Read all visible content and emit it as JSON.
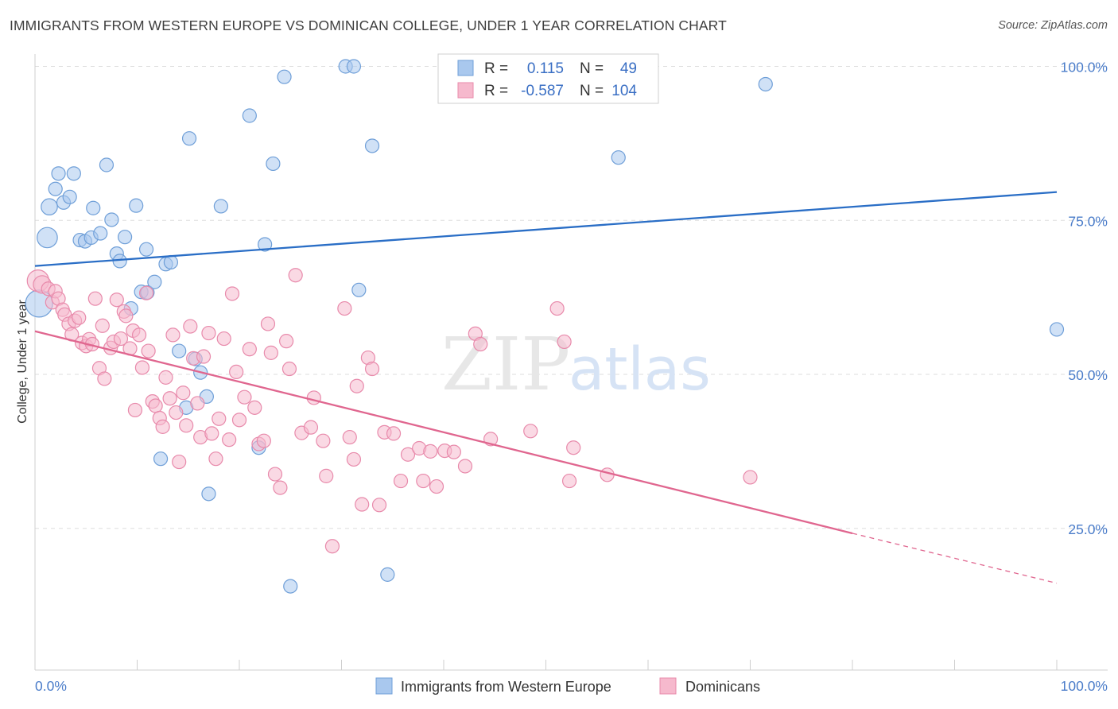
{
  "title": "IMMIGRANTS FROM WESTERN EUROPE VS DOMINICAN COLLEGE, UNDER 1 YEAR CORRELATION CHART",
  "source": "Source: ZipAtlas.com",
  "watermark": {
    "zip": "ZIP",
    "atlas": "atlas"
  },
  "colors": {
    "blue_fill": "#a9c8ee",
    "blue_stroke": "#6f9fd8",
    "blue_line": "#2a6ec6",
    "pink_fill": "#f6b9cd",
    "pink_stroke": "#e88aab",
    "pink_line": "#e0668f",
    "tick_text": "#4a7cc9",
    "grid": "#dedede"
  },
  "chart_data": {
    "type": "scatter",
    "title": "IMMIGRANTS FROM WESTERN EUROPE VS DOMINICAN COLLEGE, UNDER 1 YEAR CORRELATION CHART",
    "xlabel": "",
    "ylabel": "College, Under 1 year",
    "xlim": [
      0,
      100
    ],
    "ylim": [
      2,
      102
    ],
    "y_ticks": [
      {
        "value": 25,
        "label": "25.0%"
      },
      {
        "value": 50,
        "label": "50.0%"
      },
      {
        "value": 75,
        "label": "75.0%"
      },
      {
        "value": 100,
        "label": "100.0%"
      }
    ],
    "x_tick_labels": {
      "left": "0.0%",
      "right": "100.0%"
    },
    "x_minor_ticks": [
      0,
      10,
      20,
      30,
      40,
      50,
      60,
      70,
      80,
      90,
      100
    ],
    "grid": true,
    "legend_position": "top-center",
    "stats": [
      {
        "r_label": "R =",
        "r_value": "0.115",
        "n_label": "N =",
        "n_value": "49"
      },
      {
        "r_label": "R =",
        "r_value": "-0.587",
        "n_label": "N =",
        "n_value": "104"
      }
    ],
    "series": [
      {
        "name": "Immigrants from Western Europe",
        "color": "blue",
        "trend": {
          "x0": 0,
          "y0": 67.6,
          "x1": 100,
          "y1": 79.6
        },
        "points": [
          [
            0.4,
            61.5,
            2
          ],
          [
            1.2,
            72.2,
            1.5
          ],
          [
            1.4,
            77.2,
            1.2
          ],
          [
            2.0,
            80.1,
            1.0
          ],
          [
            2.3,
            82.6,
            1.0
          ],
          [
            2.8,
            77.9,
            1.0
          ],
          [
            3.4,
            78.8,
            1.0
          ],
          [
            3.8,
            82.6,
            1.0
          ],
          [
            4.4,
            71.8,
            1.0
          ],
          [
            4.9,
            71.6,
            1.0
          ],
          [
            5.7,
            77.0,
            1.0
          ],
          [
            5.5,
            72.2,
            1.0
          ],
          [
            6.4,
            72.9,
            1.0
          ],
          [
            7.0,
            84.0,
            1.0
          ],
          [
            7.5,
            75.1,
            1.0
          ],
          [
            8.0,
            69.6,
            1.0
          ],
          [
            8.3,
            68.4,
            1.0
          ],
          [
            8.8,
            72.3,
            1.0
          ],
          [
            9.4,
            60.7,
            1.0
          ],
          [
            9.9,
            77.4,
            1.0
          ],
          [
            10.4,
            63.4,
            1.0
          ],
          [
            10.9,
            70.3,
            1.0
          ],
          [
            11.0,
            63.3,
            1.0
          ],
          [
            11.7,
            65.0,
            1.0
          ],
          [
            12.3,
            36.3,
            1.0
          ],
          [
            12.8,
            67.9,
            1.0
          ],
          [
            13.3,
            68.2,
            1.0
          ],
          [
            14.1,
            53.8,
            1.0
          ],
          [
            14.8,
            44.6,
            1.0
          ],
          [
            15.1,
            88.3,
            1.0
          ],
          [
            15.7,
            52.5,
            1.0
          ],
          [
            16.2,
            50.3,
            1.0
          ],
          [
            16.8,
            46.4,
            1.0
          ],
          [
            17.0,
            30.6,
            1.0
          ],
          [
            18.2,
            77.3,
            1.0
          ],
          [
            21.0,
            92.0,
            1.0
          ],
          [
            21.9,
            38.1,
            1.0
          ],
          [
            22.5,
            71.1,
            1.0
          ],
          [
            23.3,
            84.2,
            1.0
          ],
          [
            24.4,
            98.3,
            1.0
          ],
          [
            25.0,
            15.6,
            1.0
          ],
          [
            30.4,
            100.0,
            1.0
          ],
          [
            31.2,
            100.0,
            1.0
          ],
          [
            31.7,
            63.7,
            1.0
          ],
          [
            33.0,
            87.1,
            1.0
          ],
          [
            34.5,
            17.5,
            1.0
          ],
          [
            57.1,
            85.2,
            1.0
          ],
          [
            71.5,
            97.1,
            1.0
          ],
          [
            100.0,
            57.3,
            1.0
          ]
        ]
      },
      {
        "name": "Dominicans",
        "color": "pink",
        "trend": {
          "x0": 0,
          "y0": 57.0,
          "x1": 80,
          "y1": 24.2,
          "dash_to_x": 100,
          "dash_to_y": 16.1
        },
        "points": [
          [
            0.3,
            65.2,
            1.6
          ],
          [
            0.7,
            64.6,
            1.3
          ],
          [
            1.3,
            63.9,
            1.0
          ],
          [
            1.7,
            61.7,
            1.0
          ],
          [
            2.0,
            63.5,
            1.0
          ],
          [
            2.3,
            62.3,
            1.0
          ],
          [
            2.7,
            60.5,
            1.0
          ],
          [
            2.9,
            59.7,
            1.0
          ],
          [
            3.3,
            58.2,
            1.0
          ],
          [
            3.6,
            56.5,
            1.0
          ],
          [
            3.9,
            58.7,
            1.0
          ],
          [
            4.3,
            59.2,
            1.0
          ],
          [
            4.6,
            55.1,
            1.0
          ],
          [
            5.0,
            54.6,
            1.0
          ],
          [
            5.3,
            55.7,
            1.0
          ],
          [
            5.6,
            54.9,
            1.0
          ],
          [
            5.9,
            62.3,
            1.0
          ],
          [
            6.3,
            51.0,
            1.0
          ],
          [
            6.6,
            57.9,
            1.0
          ],
          [
            6.8,
            49.3,
            1.0
          ],
          [
            7.4,
            54.3,
            1.0
          ],
          [
            7.7,
            55.3,
            1.0
          ],
          [
            8.0,
            62.1,
            1.0
          ],
          [
            8.4,
            55.8,
            1.0
          ],
          [
            8.7,
            60.2,
            1.0
          ],
          [
            8.9,
            59.5,
            1.0
          ],
          [
            9.3,
            54.2,
            1.0
          ],
          [
            9.6,
            57.1,
            1.0
          ],
          [
            9.8,
            44.2,
            1.0
          ],
          [
            10.2,
            56.4,
            1.0
          ],
          [
            10.5,
            51.1,
            1.0
          ],
          [
            10.9,
            63.2,
            1.0
          ],
          [
            11.1,
            53.8,
            1.0
          ],
          [
            11.5,
            45.6,
            1.0
          ],
          [
            11.8,
            44.9,
            1.0
          ],
          [
            12.2,
            42.9,
            1.0
          ],
          [
            12.5,
            41.5,
            1.0
          ],
          [
            12.8,
            49.5,
            1.0
          ],
          [
            13.2,
            46.1,
            1.0
          ],
          [
            13.5,
            56.4,
            1.0
          ],
          [
            13.8,
            43.8,
            1.0
          ],
          [
            14.1,
            35.8,
            1.0
          ],
          [
            14.5,
            47.0,
            1.0
          ],
          [
            14.8,
            41.7,
            1.0
          ],
          [
            15.2,
            57.8,
            1.0
          ],
          [
            15.5,
            52.6,
            1.0
          ],
          [
            15.9,
            45.3,
            1.0
          ],
          [
            16.2,
            39.8,
            1.0
          ],
          [
            16.5,
            52.9,
            1.0
          ],
          [
            17.0,
            56.7,
            1.0
          ],
          [
            17.3,
            40.4,
            1.0
          ],
          [
            17.7,
            36.3,
            1.0
          ],
          [
            18.0,
            42.8,
            1.0
          ],
          [
            18.5,
            55.8,
            1.0
          ],
          [
            19.0,
            39.4,
            1.0
          ],
          [
            19.3,
            63.1,
            1.0
          ],
          [
            19.7,
            50.4,
            1.0
          ],
          [
            20.0,
            42.6,
            1.0
          ],
          [
            20.5,
            46.3,
            1.0
          ],
          [
            21.0,
            54.1,
            1.0
          ],
          [
            21.5,
            44.6,
            1.0
          ],
          [
            21.9,
            38.7,
            1.0
          ],
          [
            22.4,
            39.2,
            1.0
          ],
          [
            22.8,
            58.2,
            1.0
          ],
          [
            23.1,
            53.5,
            1.0
          ],
          [
            23.5,
            33.8,
            1.0
          ],
          [
            24.0,
            31.6,
            1.0
          ],
          [
            24.6,
            55.4,
            1.0
          ],
          [
            24.9,
            50.9,
            1.0
          ],
          [
            25.5,
            66.1,
            1.0
          ],
          [
            26.1,
            40.5,
            1.0
          ],
          [
            27.0,
            41.4,
            1.0
          ],
          [
            27.3,
            46.2,
            1.0
          ],
          [
            28.2,
            39.2,
            1.0
          ],
          [
            28.5,
            33.5,
            1.0
          ],
          [
            29.1,
            22.1,
            1.0
          ],
          [
            30.3,
            60.7,
            1.0
          ],
          [
            30.8,
            39.8,
            1.0
          ],
          [
            31.2,
            36.2,
            1.0
          ],
          [
            31.5,
            48.1,
            1.0
          ],
          [
            32.0,
            28.9,
            1.0
          ],
          [
            32.6,
            52.7,
            1.0
          ],
          [
            33.0,
            50.9,
            1.0
          ],
          [
            33.7,
            28.8,
            1.0
          ],
          [
            34.2,
            40.6,
            1.0
          ],
          [
            35.1,
            40.4,
            1.0
          ],
          [
            35.8,
            32.7,
            1.0
          ],
          [
            36.5,
            37.0,
            1.0
          ],
          [
            37.6,
            38.0,
            1.0
          ],
          [
            38.0,
            32.7,
            1.0
          ],
          [
            38.7,
            37.5,
            1.0
          ],
          [
            39.3,
            31.8,
            1.0
          ],
          [
            40.1,
            37.6,
            1.0
          ],
          [
            41.0,
            37.4,
            1.0
          ],
          [
            42.1,
            35.1,
            1.0
          ],
          [
            43.1,
            56.6,
            1.0
          ],
          [
            43.6,
            54.9,
            1.0
          ],
          [
            44.6,
            39.5,
            1.0
          ],
          [
            48.5,
            40.8,
            1.0
          ],
          [
            51.1,
            60.7,
            1.0
          ],
          [
            51.8,
            55.3,
            1.0
          ],
          [
            52.3,
            32.7,
            1.0
          ],
          [
            52.7,
            38.1,
            1.0
          ],
          [
            56.0,
            33.7,
            1.0
          ],
          [
            70.0,
            33.3,
            1.0
          ]
        ]
      }
    ]
  }
}
